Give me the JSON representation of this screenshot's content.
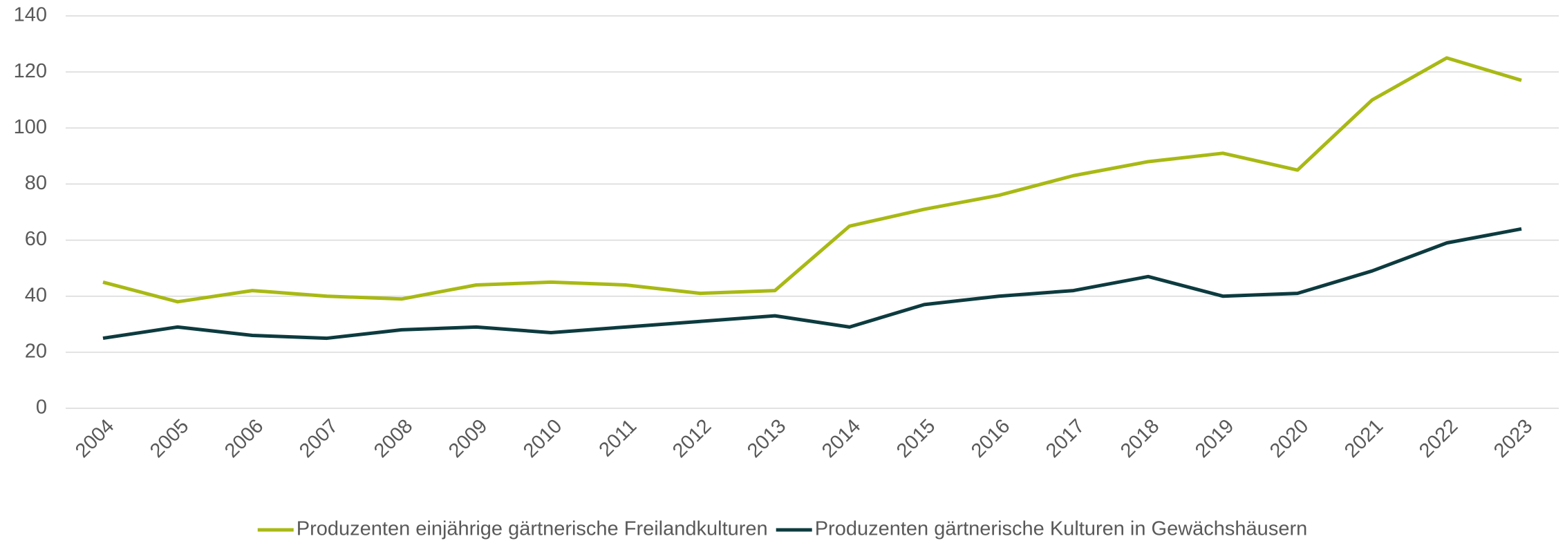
{
  "chart_data": {
    "type": "line",
    "categories": [
      "2004",
      "2005",
      "2006",
      "2007",
      "2008",
      "2009",
      "2010",
      "2011",
      "2012",
      "2013",
      "2014",
      "2015",
      "2016",
      "2017",
      "2018",
      "2019",
      "2020",
      "2021",
      "2022",
      "2023"
    ],
    "series": [
      {
        "name": "Produzenten einjährige gärtnerische Freilandkulturen",
        "color": "#a8b914",
        "values": [
          45,
          38,
          42,
          40,
          39,
          44,
          45,
          44,
          41,
          42,
          65,
          71,
          76,
          83,
          88,
          91,
          85,
          110,
          125,
          117
        ]
      },
      {
        "name": "Produzenten gärtnerische Kulturen in Gewächshäusern",
        "color": "#0d3b3f",
        "values": [
          25,
          29,
          26,
          25,
          28,
          29,
          27,
          29,
          31,
          33,
          29,
          37,
          40,
          42,
          47,
          40,
          41,
          49,
          59,
          64
        ]
      }
    ],
    "ylim": [
      0,
      140
    ],
    "yticks": [
      0,
      20,
      40,
      60,
      80,
      100,
      120,
      140
    ],
    "grid": true,
    "legend": "bottom"
  }
}
